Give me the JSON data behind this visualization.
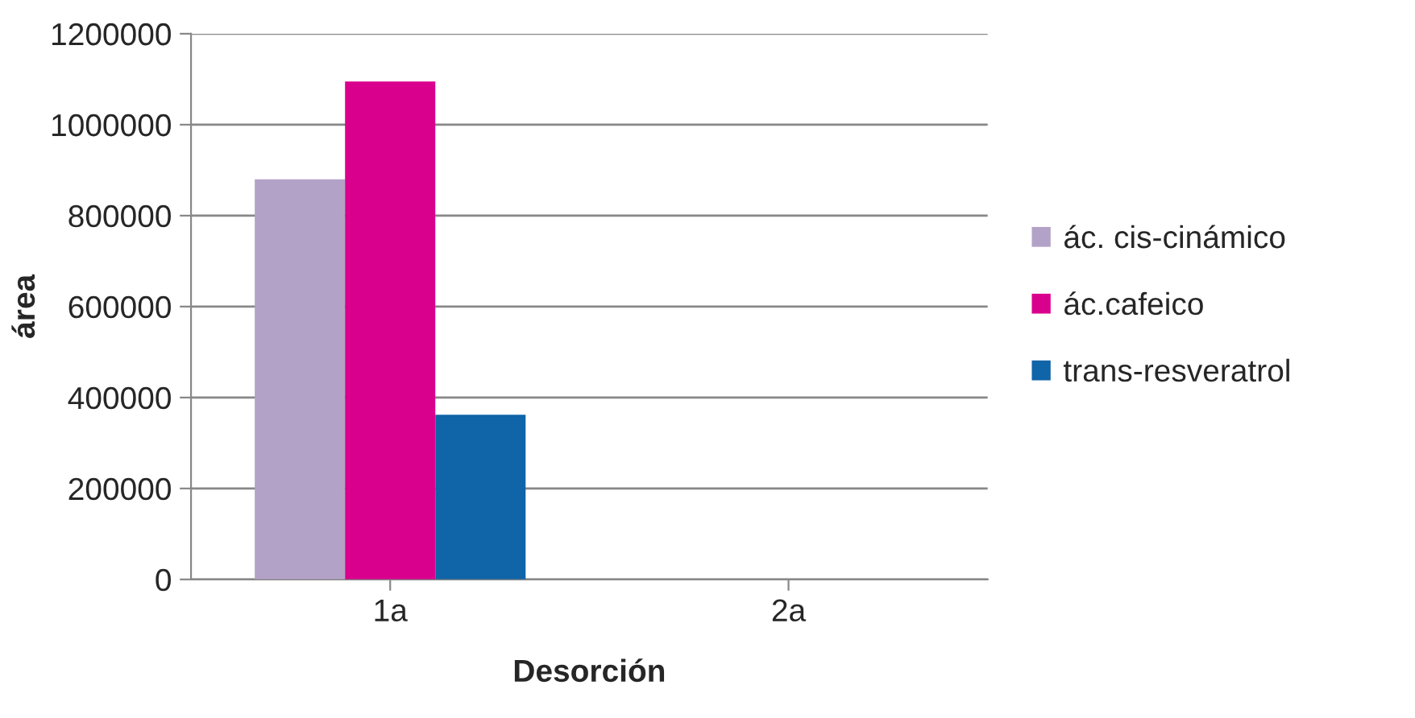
{
  "chart_data": {
    "type": "bar",
    "xlabel": "Desorción",
    "ylabel": "área",
    "categories": [
      "1a",
      "2a"
    ],
    "series": [
      {
        "name": "ác. cis-cinámico",
        "color": "#b3a2c7",
        "values": [
          880000,
          null
        ]
      },
      {
        "name": "ác.cafeico",
        "color": "#d9008d",
        "values": [
          1095000,
          null
        ]
      },
      {
        "name": "trans-resveratrol",
        "color": "#1064a8",
        "values": [
          362000,
          null
        ]
      }
    ],
    "ylim": [
      0,
      1200000
    ],
    "yticks": [
      0,
      200000,
      400000,
      600000,
      800000,
      1000000,
      1200000
    ],
    "grid": "y",
    "legend": "right"
  }
}
